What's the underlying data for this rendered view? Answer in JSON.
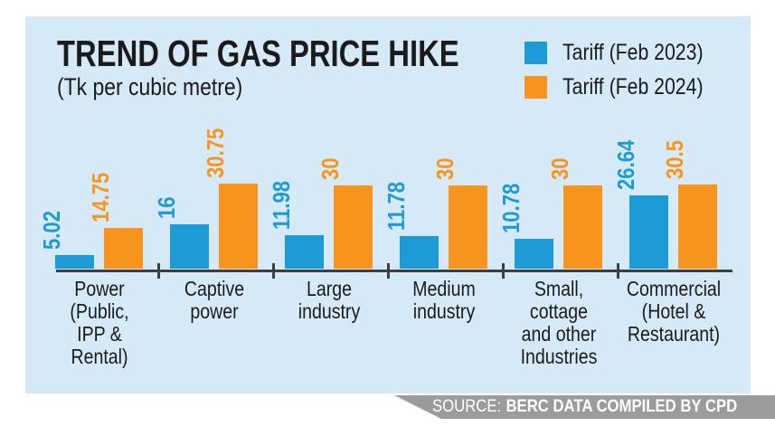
{
  "page": {
    "title": "TREND OF GAS PRICE HIKE",
    "subtitle": "(Tk per cubic metre)"
  },
  "source": {
    "label": "SOURCE:",
    "credit": "BERC DATA COMPILED BY CPD"
  },
  "colors": {
    "panel_bg": "#D5EAF6",
    "bar_2023": "#1E9AD6",
    "bar_2024": "#F7941E",
    "axis": "#3E3E3E",
    "text": "#1B1B1B",
    "banner_bg": "#9B9B9B",
    "banner_text": "#FFFFFF"
  },
  "chart_data": {
    "type": "bar",
    "title": "TREND OF GAS PRICE HIKE",
    "ylabel": "Tk per cubic metre",
    "xlabel": "",
    "ylim": [
      0,
      33
    ],
    "grid": false,
    "legend_position": "top-right",
    "value_labels": true,
    "categories": [
      "Power (Public, IPP & Rental)",
      "Captive power",
      "Large industry",
      "Medium industry",
      "Small, cottage and other Industries",
      "Commercial (Hotel & Restaurant)"
    ],
    "category_display": [
      "Power\n(Public,\nIPP &\nRental)",
      "Captive\npower",
      "Large\nindustry",
      "Medium\nindustry",
      "Small,\ncottage\nand other\nIndustries",
      "Commercial\n(Hotel &\nRestaurant)"
    ],
    "series": [
      {
        "name": "Tariff (Feb 2023)",
        "color": "#1E9AD6",
        "values": [
          5.02,
          16,
          11.98,
          11.78,
          10.78,
          26.64
        ]
      },
      {
        "name": "Tariff (Feb 2024)",
        "color": "#F7941E",
        "values": [
          14.75,
          30.75,
          30,
          30,
          30,
          30.5
        ]
      }
    ]
  }
}
